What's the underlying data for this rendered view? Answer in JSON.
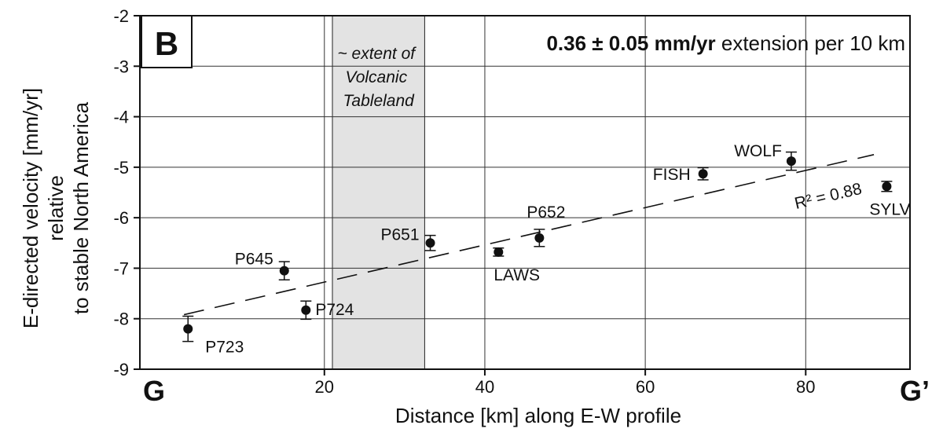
{
  "chart_data": {
    "type": "scatter",
    "panel_label": "B",
    "headline": {
      "bold": "0.36 ± 0.05 mm/yr",
      "rest": " extension per 10 km"
    },
    "xlabel": "Distance [km] along E-W profile",
    "ylabel_lines": [
      "E-directed  velocity [mm/yr]",
      "relative",
      "to stable North America"
    ],
    "xlim": [
      -3,
      93
    ],
    "ylim": [
      -9,
      -2
    ],
    "xticks": [
      20,
      40,
      60,
      80
    ],
    "yticks": [
      -9,
      -8,
      -7,
      -6,
      -5,
      -4,
      -3,
      -2
    ],
    "x_end_labels": {
      "left": "G",
      "right": "G’"
    },
    "shaded_region": {
      "x0": 21,
      "x1": 32.5,
      "label_lines": [
        "~ extent of",
        "Volcanic",
        "Tableland"
      ]
    },
    "points": [
      {
        "name": "P723",
        "x": 3,
        "y": -8.2,
        "err": 0.25
      },
      {
        "name": "P645",
        "x": 15,
        "y": -7.05,
        "err": 0.18
      },
      {
        "name": "P724",
        "x": 17.7,
        "y": -7.83,
        "err": 0.18
      },
      {
        "name": "P651",
        "x": 33.2,
        "y": -6.5,
        "err": 0.15
      },
      {
        "name": "LAWS",
        "x": 41.7,
        "y": -6.68,
        "err": 0.08
      },
      {
        "name": "P652",
        "x": 46.8,
        "y": -6.4,
        "err": 0.17
      },
      {
        "name": "FISH",
        "x": 67.2,
        "y": -5.13,
        "err": 0.12
      },
      {
        "name": "WOLF",
        "x": 78.2,
        "y": -4.88,
        "err": 0.18
      },
      {
        "name": "SYLV",
        "x": 90.1,
        "y": -5.38,
        "err": 0.1
      }
    ],
    "fit_line": {
      "x": [
        2.5,
        88.5
      ],
      "y": [
        -7.92,
        -4.75
      ]
    },
    "fit_label": "R² = 0.88"
  }
}
